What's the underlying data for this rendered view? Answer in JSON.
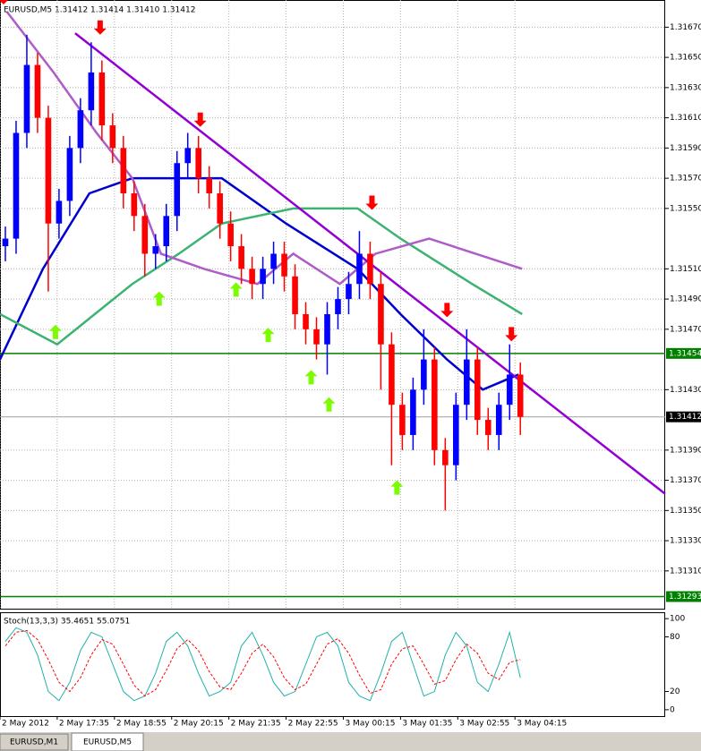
{
  "chart_data": {
    "type": "candlestick",
    "title": "EURUSD,M5  1.31412 1.31414 1.31410 1.31412",
    "up_color": "#0000ff",
    "down_color": "#ff0000",
    "xlim": [
      0,
      186
    ],
    "ylim": [
      1.31285,
      1.31688
    ],
    "grid": true,
    "xticks": [
      {
        "value": 0,
        "label": "2 May 2012"
      },
      {
        "value": 16,
        "label": "2 May 17:35"
      },
      {
        "value": 32,
        "label": "2 May 18:55"
      },
      {
        "value": 48,
        "label": "2 May 20:15"
      },
      {
        "value": 64,
        "label": "2 May 21:35"
      },
      {
        "value": 80,
        "label": "2 May 22:55"
      },
      {
        "value": 96,
        "label": "3 May 00:15"
      },
      {
        "value": 112,
        "label": "3 May 01:35"
      },
      {
        "value": 128,
        "label": "3 May 02:55"
      },
      {
        "value": 144,
        "label": "3 May 04:15"
      }
    ],
    "yticks": [
      {
        "value": 1.3167,
        "label": "1.31670"
      },
      {
        "value": 1.3165,
        "label": "1.31650"
      },
      {
        "value": 1.3163,
        "label": "1.31630"
      },
      {
        "value": 1.3161,
        "label": "1.31610"
      },
      {
        "value": 1.3159,
        "label": "1.31590"
      },
      {
        "value": 1.3157,
        "label": "1.31570"
      },
      {
        "value": 1.3155,
        "label": "1.31550"
      },
      {
        "value": 1.3151,
        "label": "1.31510"
      },
      {
        "value": 1.3149,
        "label": "1.31490"
      },
      {
        "value": 1.3147,
        "label": "1.31470"
      },
      {
        "value": 1.3143,
        "label": "1.31430"
      },
      {
        "value": 1.3139,
        "label": "1.31390"
      },
      {
        "value": 1.3137,
        "label": "1.31370"
      },
      {
        "value": 1.3135,
        "label": "1.31350"
      },
      {
        "value": 1.3133,
        "label": "1.31330"
      },
      {
        "value": 1.3131,
        "label": "1.31310"
      }
    ],
    "levels": [
      {
        "value": 1.31454,
        "color": "#008000"
      },
      {
        "value": 1.31293,
        "color": "#008000"
      }
    ],
    "current": {
      "value": 1.31412,
      "label": "1.31412"
    },
    "candles": {
      "x": [
        1.5,
        4.5,
        7.5,
        10.5,
        13.5,
        16.5,
        19.5,
        22.5,
        25.5,
        28.5,
        31.5,
        34.5,
        37.5,
        40.5,
        43.5,
        46.5,
        49.5,
        52.5,
        55.5,
        58.5,
        61.5,
        64.5,
        67.5,
        70.5,
        73.5,
        76.5,
        79.5,
        82.5,
        85.5,
        88.5,
        91.5,
        94.5,
        97.5,
        100.5,
        103.5,
        106.5,
        109.5,
        112.5,
        115.5,
        118.5,
        121.5,
        124.5,
        127.5,
        130.5,
        133.5,
        136.5,
        139.5,
        142.5,
        145.5
      ],
      "open": [
        1.31525,
        1.3153,
        1.316,
        1.31645,
        1.3161,
        1.3154,
        1.31555,
        1.3159,
        1.31615,
        1.3164,
        1.31605,
        1.3159,
        1.3156,
        1.31545,
        1.3152,
        1.31525,
        1.31545,
        1.3158,
        1.3159,
        1.3157,
        1.3156,
        1.3154,
        1.31525,
        1.3151,
        1.315,
        1.3151,
        1.3152,
        1.31505,
        1.3148,
        1.3147,
        1.3146,
        1.3148,
        1.3149,
        1.315,
        1.3152,
        1.315,
        1.3146,
        1.3142,
        1.314,
        1.3143,
        1.3145,
        1.3139,
        1.3138,
        1.3142,
        1.3145,
        1.3141,
        1.314,
        1.3142,
        1.3144
      ],
      "high": [
        1.31538,
        1.31608,
        1.31665,
        1.31653,
        1.31618,
        1.31563,
        1.31598,
        1.31623,
        1.3166,
        1.31648,
        1.31613,
        1.31598,
        1.31568,
        1.31553,
        1.31533,
        1.31553,
        1.31588,
        1.316,
        1.31598,
        1.31578,
        1.31568,
        1.31548,
        1.31533,
        1.31518,
        1.31518,
        1.31528,
        1.31528,
        1.31513,
        1.31488,
        1.31478,
        1.31488,
        1.31498,
        1.31508,
        1.31535,
        1.31528,
        1.31508,
        1.31468,
        1.31428,
        1.31438,
        1.3147,
        1.31458,
        1.31398,
        1.31428,
        1.3147,
        1.31458,
        1.31418,
        1.31428,
        1.3146,
        1.31448
      ],
      "low": [
        1.31515,
        1.3152,
        1.3159,
        1.316,
        1.31495,
        1.3153,
        1.31545,
        1.3158,
        1.31605,
        1.31595,
        1.3158,
        1.3155,
        1.31535,
        1.31505,
        1.3151,
        1.31515,
        1.31535,
        1.3157,
        1.3156,
        1.3155,
        1.3153,
        1.31515,
        1.315,
        1.3149,
        1.3149,
        1.315,
        1.31495,
        1.3147,
        1.3146,
        1.3145,
        1.3144,
        1.3147,
        1.3148,
        1.3149,
        1.3149,
        1.3143,
        1.3138,
        1.3139,
        1.3139,
        1.3142,
        1.3138,
        1.3135,
        1.3137,
        1.3141,
        1.314,
        1.3139,
        1.3139,
        1.3141,
        1.314
      ],
      "close": [
        1.3153,
        1.316,
        1.31645,
        1.3161,
        1.3154,
        1.31555,
        1.3159,
        1.31615,
        1.3164,
        1.31605,
        1.3159,
        1.3156,
        1.31545,
        1.3152,
        1.31525,
        1.31545,
        1.3158,
        1.3159,
        1.3157,
        1.3156,
        1.3154,
        1.31525,
        1.3151,
        1.315,
        1.3151,
        1.3152,
        1.31505,
        1.3148,
        1.3147,
        1.3146,
        1.3148,
        1.3149,
        1.315,
        1.3152,
        1.315,
        1.3146,
        1.3142,
        1.314,
        1.3143,
        1.3145,
        1.3139,
        1.3138,
        1.3142,
        1.3145,
        1.3141,
        1.314,
        1.3142,
        1.3144,
        1.31412
      ]
    },
    "lines": [
      {
        "color": "#0000cc",
        "x": [
          0,
          12,
          25,
          37,
          50,
          62,
          80,
          100,
          112,
          125,
          135,
          145
        ],
        "values": [
          1.3145,
          1.3151,
          1.3156,
          1.3157,
          1.3157,
          1.3157,
          1.3154,
          1.3151,
          1.3148,
          1.3145,
          1.3143,
          1.3144
        ]
      },
      {
        "color": "#3cb371",
        "x": [
          0,
          16,
          37,
          50,
          62,
          82,
          100,
          112,
          132,
          146
        ],
        "values": [
          1.3148,
          1.3146,
          1.315,
          1.3152,
          1.3154,
          1.3155,
          1.3155,
          1.3153,
          1.315,
          1.3148
        ]
      },
      {
        "color": "#b05cc8",
        "x": [
          2,
          15,
          27,
          37,
          45,
          57,
          72,
          82,
          95,
          105,
          120,
          146
        ],
        "values": [
          1.3168,
          1.3164,
          1.316,
          1.3157,
          1.3152,
          1.3151,
          1.315,
          1.3152,
          1.315,
          1.3152,
          1.3153,
          1.3151
        ]
      },
      {
        "color": "#9400d3",
        "x": [
          21,
          186
        ],
        "values": [
          1.31666,
          1.31361
        ]
      }
    ],
    "down_arrows": {
      "color": "#ff0000",
      "x": [
        1,
        28,
        56,
        104,
        125,
        143
      ],
      "values": [
        1.31685,
        1.31665,
        1.31604,
        1.31549,
        1.31478,
        1.31462
      ]
    },
    "up_arrows": {
      "color": "#7cfc00",
      "x": [
        15.5,
        44.5,
        66,
        75,
        87,
        92,
        111
      ],
      "values": [
        1.31473,
        1.31495,
        1.31501,
        1.31471,
        1.31443,
        1.31425,
        1.3137
      ]
    },
    "stoch": {
      "title": "Stoch(13,3,3) 35.4651 55.0751",
      "ylim": [
        -7,
        107
      ],
      "yticks": [
        0,
        20,
        80,
        100
      ],
      "series": [
        {
          "color": "#20b2aa",
          "values": [
            75,
            90,
            85,
            60,
            20,
            10,
            30,
            65,
            85,
            80,
            50,
            20,
            10,
            15,
            40,
            75,
            85,
            70,
            40,
            15,
            20,
            30,
            70,
            85,
            60,
            30,
            15,
            20,
            50,
            80,
            85,
            70,
            30,
            15,
            10,
            40,
            75,
            85,
            50,
            15,
            20,
            60,
            85,
            70,
            30,
            20,
            50,
            85,
            35
          ]
        },
        {
          "color": "#ff0000",
          "values": [
            70,
            85,
            87,
            77,
            55,
            30,
            20,
            35,
            60,
            77,
            72,
            50,
            27,
            15,
            22,
            43,
            67,
            77,
            65,
            42,
            25,
            22,
            40,
            62,
            72,
            58,
            35,
            22,
            28,
            50,
            72,
            78,
            62,
            38,
            18,
            22,
            50,
            67,
            70,
            50,
            28,
            32,
            55,
            72,
            62,
            40,
            33,
            52,
            55
          ]
        }
      ]
    },
    "tabs": [
      "EURUSD,M1",
      "EURUSD,M5"
    ]
  }
}
